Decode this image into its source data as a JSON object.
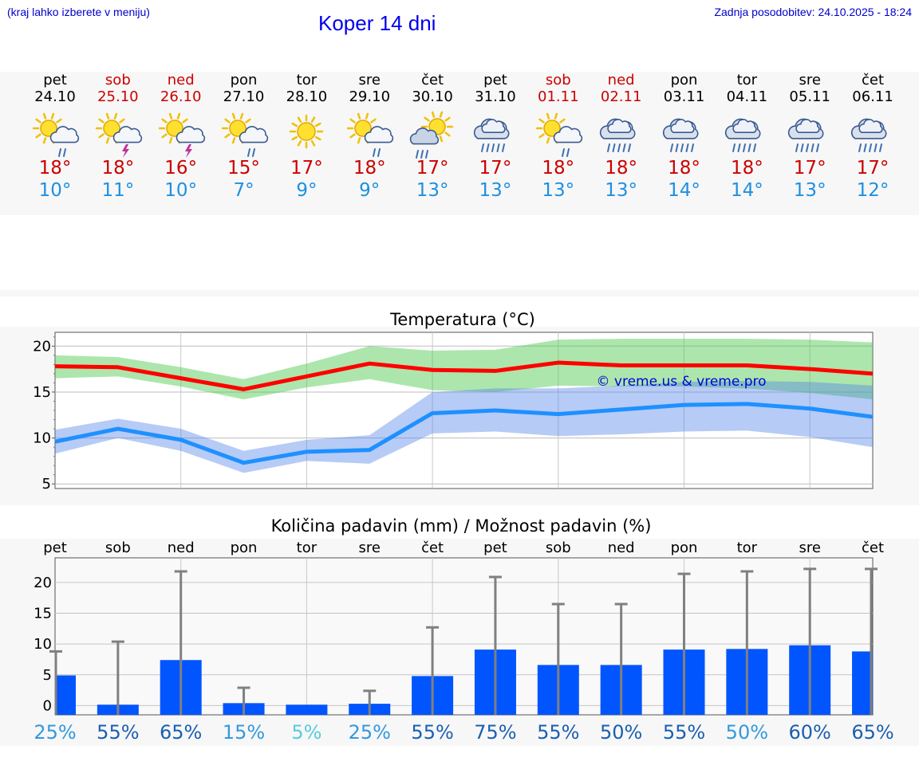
{
  "header": {
    "hint": "(kraj lahko izberete v meniju)",
    "title": "Koper 14 dni",
    "updated": "Zadnja posodobitev: 24.10.2025 - 18:24"
  },
  "days": [
    {
      "name": "pet",
      "date": "24.10",
      "weekend": false,
      "icon": "sun-cloud-rain-icon",
      "max": "18°",
      "min": "10°"
    },
    {
      "name": "sob",
      "date": "25.10",
      "weekend": true,
      "icon": "sun-cloud-thunder-icon",
      "max": "18°",
      "min": "11°"
    },
    {
      "name": "ned",
      "date": "26.10",
      "weekend": true,
      "icon": "sun-cloud-thunder-icon",
      "max": "16°",
      "min": "10°"
    },
    {
      "name": "pon",
      "date": "27.10",
      "weekend": false,
      "icon": "sun-cloud-rain-icon",
      "max": "15°",
      "min": "7°"
    },
    {
      "name": "tor",
      "date": "28.10",
      "weekend": false,
      "icon": "sun-icon",
      "max": "17°",
      "min": "9°"
    },
    {
      "name": "sre",
      "date": "29.10",
      "weekend": false,
      "icon": "sun-cloud-rain-icon",
      "max": "18°",
      "min": "9°"
    },
    {
      "name": "čet",
      "date": "30.10",
      "weekend": false,
      "icon": "sun-behind-cloud-rain-icon",
      "max": "17°",
      "min": "13°"
    },
    {
      "name": "pet",
      "date": "31.10",
      "weekend": false,
      "icon": "cloud-heavy-rain-icon",
      "max": "17°",
      "min": "13°"
    },
    {
      "name": "sob",
      "date": "01.11",
      "weekend": true,
      "icon": "sun-cloud-rain-icon",
      "max": "18°",
      "min": "13°"
    },
    {
      "name": "ned",
      "date": "02.11",
      "weekend": true,
      "icon": "cloud-heavy-rain-icon",
      "max": "18°",
      "min": "13°"
    },
    {
      "name": "pon",
      "date": "03.11",
      "weekend": false,
      "icon": "cloud-heavy-rain-icon",
      "max": "18°",
      "min": "14°"
    },
    {
      "name": "tor",
      "date": "04.11",
      "weekend": false,
      "icon": "cloud-heavy-rain-icon",
      "max": "18°",
      "min": "14°"
    },
    {
      "name": "sre",
      "date": "05.11",
      "weekend": false,
      "icon": "cloud-heavy-rain-icon",
      "max": "17°",
      "min": "13°"
    },
    {
      "name": "čet",
      "date": "06.11",
      "weekend": false,
      "icon": "cloud-heavy-rain-icon",
      "max": "17°",
      "min": "12°"
    }
  ],
  "chart_data": [
    {
      "type": "line",
      "title": "Temperatura (°C)",
      "watermark": "© vreme.us & vreme.pro",
      "x": [
        "24.10",
        "25.10",
        "26.10",
        "27.10",
        "28.10",
        "29.10",
        "30.10",
        "31.10",
        "01.11",
        "02.11",
        "03.11",
        "04.11",
        "05.11",
        "06.11"
      ],
      "ylim": [
        4.5,
        21.5
      ],
      "yticks": [
        5,
        10,
        15,
        20
      ],
      "grid": true,
      "series": [
        {
          "key": "max",
          "color": "#ff0000",
          "values": [
            17.8,
            17.7,
            16.5,
            15.3,
            16.7,
            18.1,
            17.4,
            17.3,
            18.2,
            17.9,
            17.9,
            17.9,
            17.5,
            17.0
          ],
          "band_low": [
            16.5,
            16.7,
            15.6,
            14.2,
            15.5,
            16.4,
            15.2,
            15.0,
            15.7,
            15.6,
            15.6,
            15.4,
            14.9,
            14.2
          ],
          "band_high": [
            19.0,
            18.8,
            17.7,
            16.4,
            18.1,
            20.0,
            19.5,
            19.6,
            20.7,
            20.8,
            20.8,
            20.8,
            20.7,
            20.4
          ]
        },
        {
          "key": "min",
          "color": "#1e90ff",
          "values": [
            9.6,
            11.0,
            9.8,
            7.3,
            8.5,
            8.7,
            12.7,
            13.0,
            12.6,
            13.1,
            13.6,
            13.7,
            13.2,
            12.3
          ],
          "band_low": [
            8.3,
            10.0,
            8.6,
            6.2,
            7.5,
            7.2,
            10.5,
            10.7,
            10.2,
            10.4,
            10.7,
            10.8,
            10.1,
            9.0
          ],
          "band_high": [
            10.9,
            12.1,
            11.0,
            8.6,
            9.8,
            10.3,
            15.0,
            15.4,
            15.4,
            15.7,
            16.1,
            16.2,
            16.1,
            15.7
          ]
        }
      ]
    },
    {
      "type": "bar",
      "title": "Količina padavin (mm) / Možnost padavin (%)",
      "categories": [
        "pet",
        "sob",
        "ned",
        "pon",
        "tor",
        "sre",
        "čet",
        "pet",
        "sob",
        "ned",
        "pon",
        "tor",
        "sre",
        "čet"
      ],
      "values": [
        4.9,
        0.1,
        7.4,
        0.4,
        0.0,
        0.3,
        4.8,
        9.1,
        6.6,
        6.6,
        9.1,
        9.2,
        9.8,
        8.8
      ],
      "error_high": [
        8.8,
        10.4,
        21.8,
        2.9,
        0.0,
        2.4,
        12.7,
        20.9,
        16.5,
        16.5,
        21.4,
        21.8,
        22.2,
        22.2
      ],
      "chance": [
        "25%",
        "55%",
        "65%",
        "15%",
        "5%",
        "25%",
        "55%",
        "75%",
        "55%",
        "50%",
        "55%",
        "50%",
        "60%",
        "65%"
      ],
      "chance_colors": [
        "#3399dd",
        "#1a5fb0",
        "#1a5fb0",
        "#3399dd",
        "#55ccdd",
        "#3399dd",
        "#1a5fb0",
        "#1a5fb0",
        "#1a5fb0",
        "#1a5fb0",
        "#1a5fb0",
        "#3399dd",
        "#1a5fb0",
        "#1a5fb0"
      ],
      "ylim": [
        -1.5,
        24
      ],
      "yticks": [
        0,
        5,
        10,
        15,
        20
      ],
      "bar_color": "#0055ff",
      "grid": true
    }
  ]
}
